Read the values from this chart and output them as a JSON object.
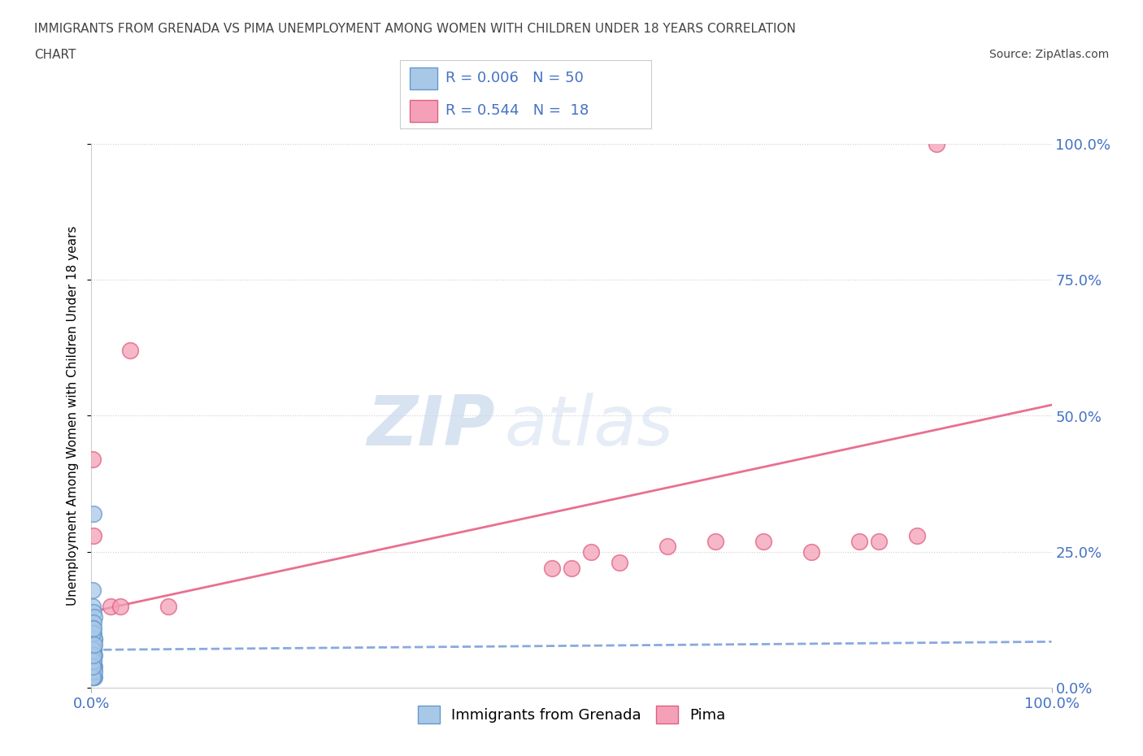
{
  "title_line1": "IMMIGRANTS FROM GRENADA VS PIMA UNEMPLOYMENT AMONG WOMEN WITH CHILDREN UNDER 18 YEARS CORRELATION",
  "title_line2": "CHART",
  "source": "Source: ZipAtlas.com",
  "ylabel": "Unemployment Among Women with Children Under 18 years",
  "xmin": 0.0,
  "xmax": 1.0,
  "ymin": 0.0,
  "ymax": 1.0,
  "xtick_labels": [
    "0.0%",
    "100.0%"
  ],
  "ytick_values": [
    0.0,
    0.25,
    0.5,
    0.75,
    1.0
  ],
  "ytick_labels": [
    "0.0%",
    "25.0%",
    "50.0%",
    "75.0%",
    "100.0%"
  ],
  "grid_color": "#cccccc",
  "watermark_zip": "ZIP",
  "watermark_atlas": "atlas",
  "blue_color": "#a8c8e8",
  "pink_color": "#f4a0b8",
  "blue_edge_color": "#6699cc",
  "pink_edge_color": "#e06080",
  "blue_line_color": "#88aadd",
  "pink_line_color": "#e87090",
  "legend_R_blue": "0.006",
  "legend_N_blue": "50",
  "legend_R_pink": "0.544",
  "legend_N_pink": "18",
  "legend_label_blue": "Immigrants from Grenada",
  "legend_label_pink": "Pima",
  "title_color": "#444444",
  "axis_label_color": "#4472c4",
  "blue_scatter_x": [
    0.001,
    0.002,
    0.001,
    0.003,
    0.002,
    0.001,
    0.002,
    0.003,
    0.001,
    0.002,
    0.001,
    0.002,
    0.001,
    0.002,
    0.001,
    0.003,
    0.002,
    0.001,
    0.002,
    0.001,
    0.001,
    0.002,
    0.001,
    0.002,
    0.003,
    0.001,
    0.002,
    0.001,
    0.002,
    0.001,
    0.002,
    0.001,
    0.002,
    0.003,
    0.001,
    0.002,
    0.001,
    0.002,
    0.003,
    0.001,
    0.002,
    0.001,
    0.002,
    0.001,
    0.003,
    0.001,
    0.002,
    0.001,
    0.002,
    0.003
  ],
  "blue_scatter_y": [
    0.15,
    0.14,
    0.18,
    0.13,
    0.12,
    0.11,
    0.1,
    0.09,
    0.08,
    0.07,
    0.07,
    0.08,
    0.06,
    0.07,
    0.08,
    0.09,
    0.06,
    0.05,
    0.07,
    0.06,
    0.05,
    0.06,
    0.04,
    0.05,
    0.04,
    0.05,
    0.04,
    0.03,
    0.04,
    0.03,
    0.03,
    0.04,
    0.03,
    0.02,
    0.03,
    0.02,
    0.03,
    0.02,
    0.03,
    0.02,
    0.32,
    0.1,
    0.11,
    0.05,
    0.06,
    0.07,
    0.05,
    0.04,
    0.06,
    0.08
  ],
  "pink_scatter_x": [
    0.001,
    0.002,
    0.02,
    0.5,
    0.75,
    0.8,
    0.82,
    0.86,
    0.88,
    0.04,
    0.03,
    0.08,
    0.55,
    0.65,
    0.7,
    0.48,
    0.52,
    0.6
  ],
  "pink_scatter_y": [
    0.42,
    0.28,
    0.15,
    0.22,
    0.25,
    0.27,
    0.27,
    0.28,
    1.0,
    0.62,
    0.15,
    0.15,
    0.23,
    0.27,
    0.27,
    0.22,
    0.25,
    0.26
  ]
}
